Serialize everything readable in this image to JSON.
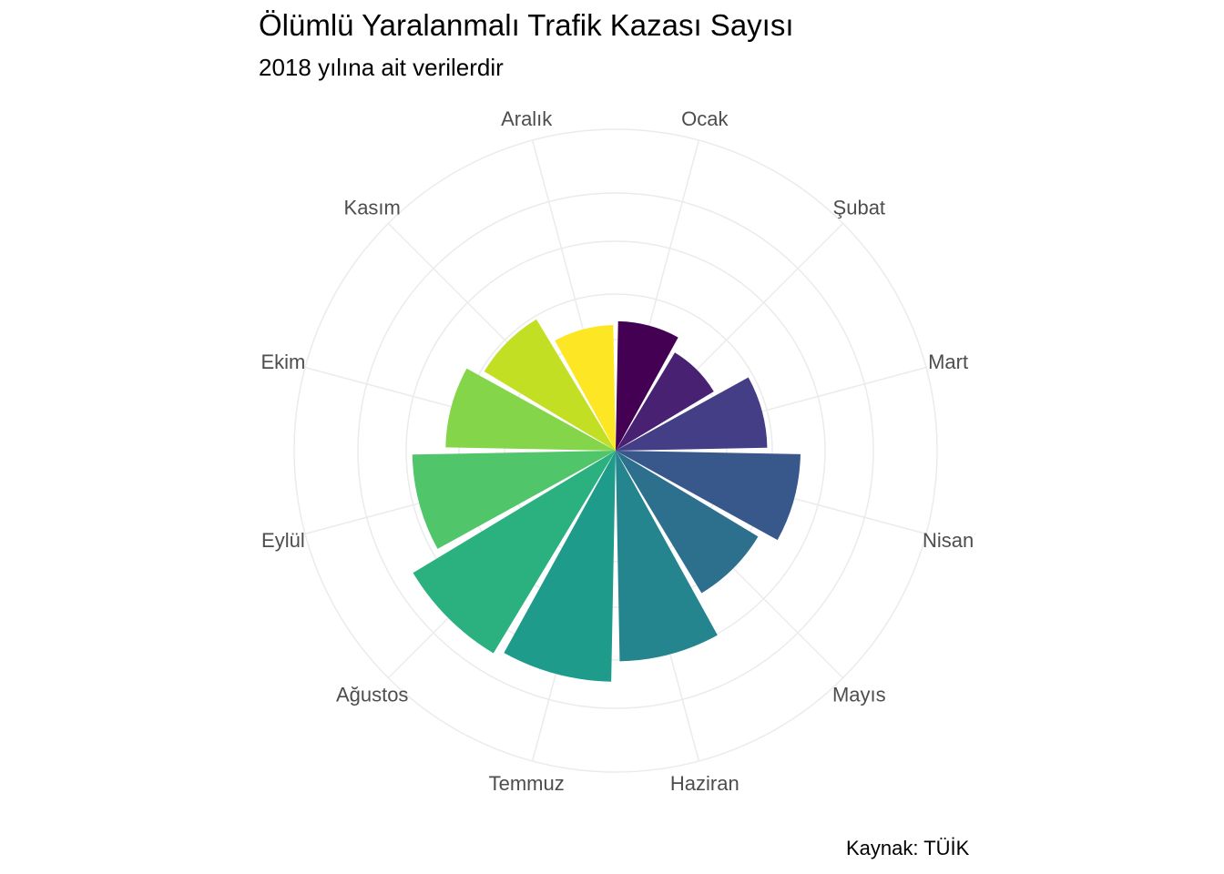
{
  "chart_data": {
    "type": "bar",
    "coord": "polar",
    "title": "Ölümlü Yaralanmalı Trafik Kazası Sayısı",
    "subtitle": "2018 yılına ait verilerdir",
    "caption": "Kaynak: TÜİK",
    "categories": [
      "Ocak",
      "Şubat",
      "Mart",
      "Nisan",
      "Mayıs",
      "Haziran",
      "Temmuz",
      "Ağustos",
      "Eylül",
      "Ekim",
      "Kasım",
      "Aralık"
    ],
    "values": [
      0.7,
      0.62,
      0.82,
      1.0,
      0.9,
      1.14,
      1.25,
      1.28,
      1.1,
      0.92,
      0.83,
      0.68
    ],
    "colors": [
      "#440154",
      "#482173",
      "#433E85",
      "#38588C",
      "#2D708E",
      "#25858E",
      "#1E9B8A",
      "#2BB07F",
      "#51C56A",
      "#85D54A",
      "#C2DF23",
      "#FDE725"
    ],
    "grid": true,
    "legend": "none"
  }
}
